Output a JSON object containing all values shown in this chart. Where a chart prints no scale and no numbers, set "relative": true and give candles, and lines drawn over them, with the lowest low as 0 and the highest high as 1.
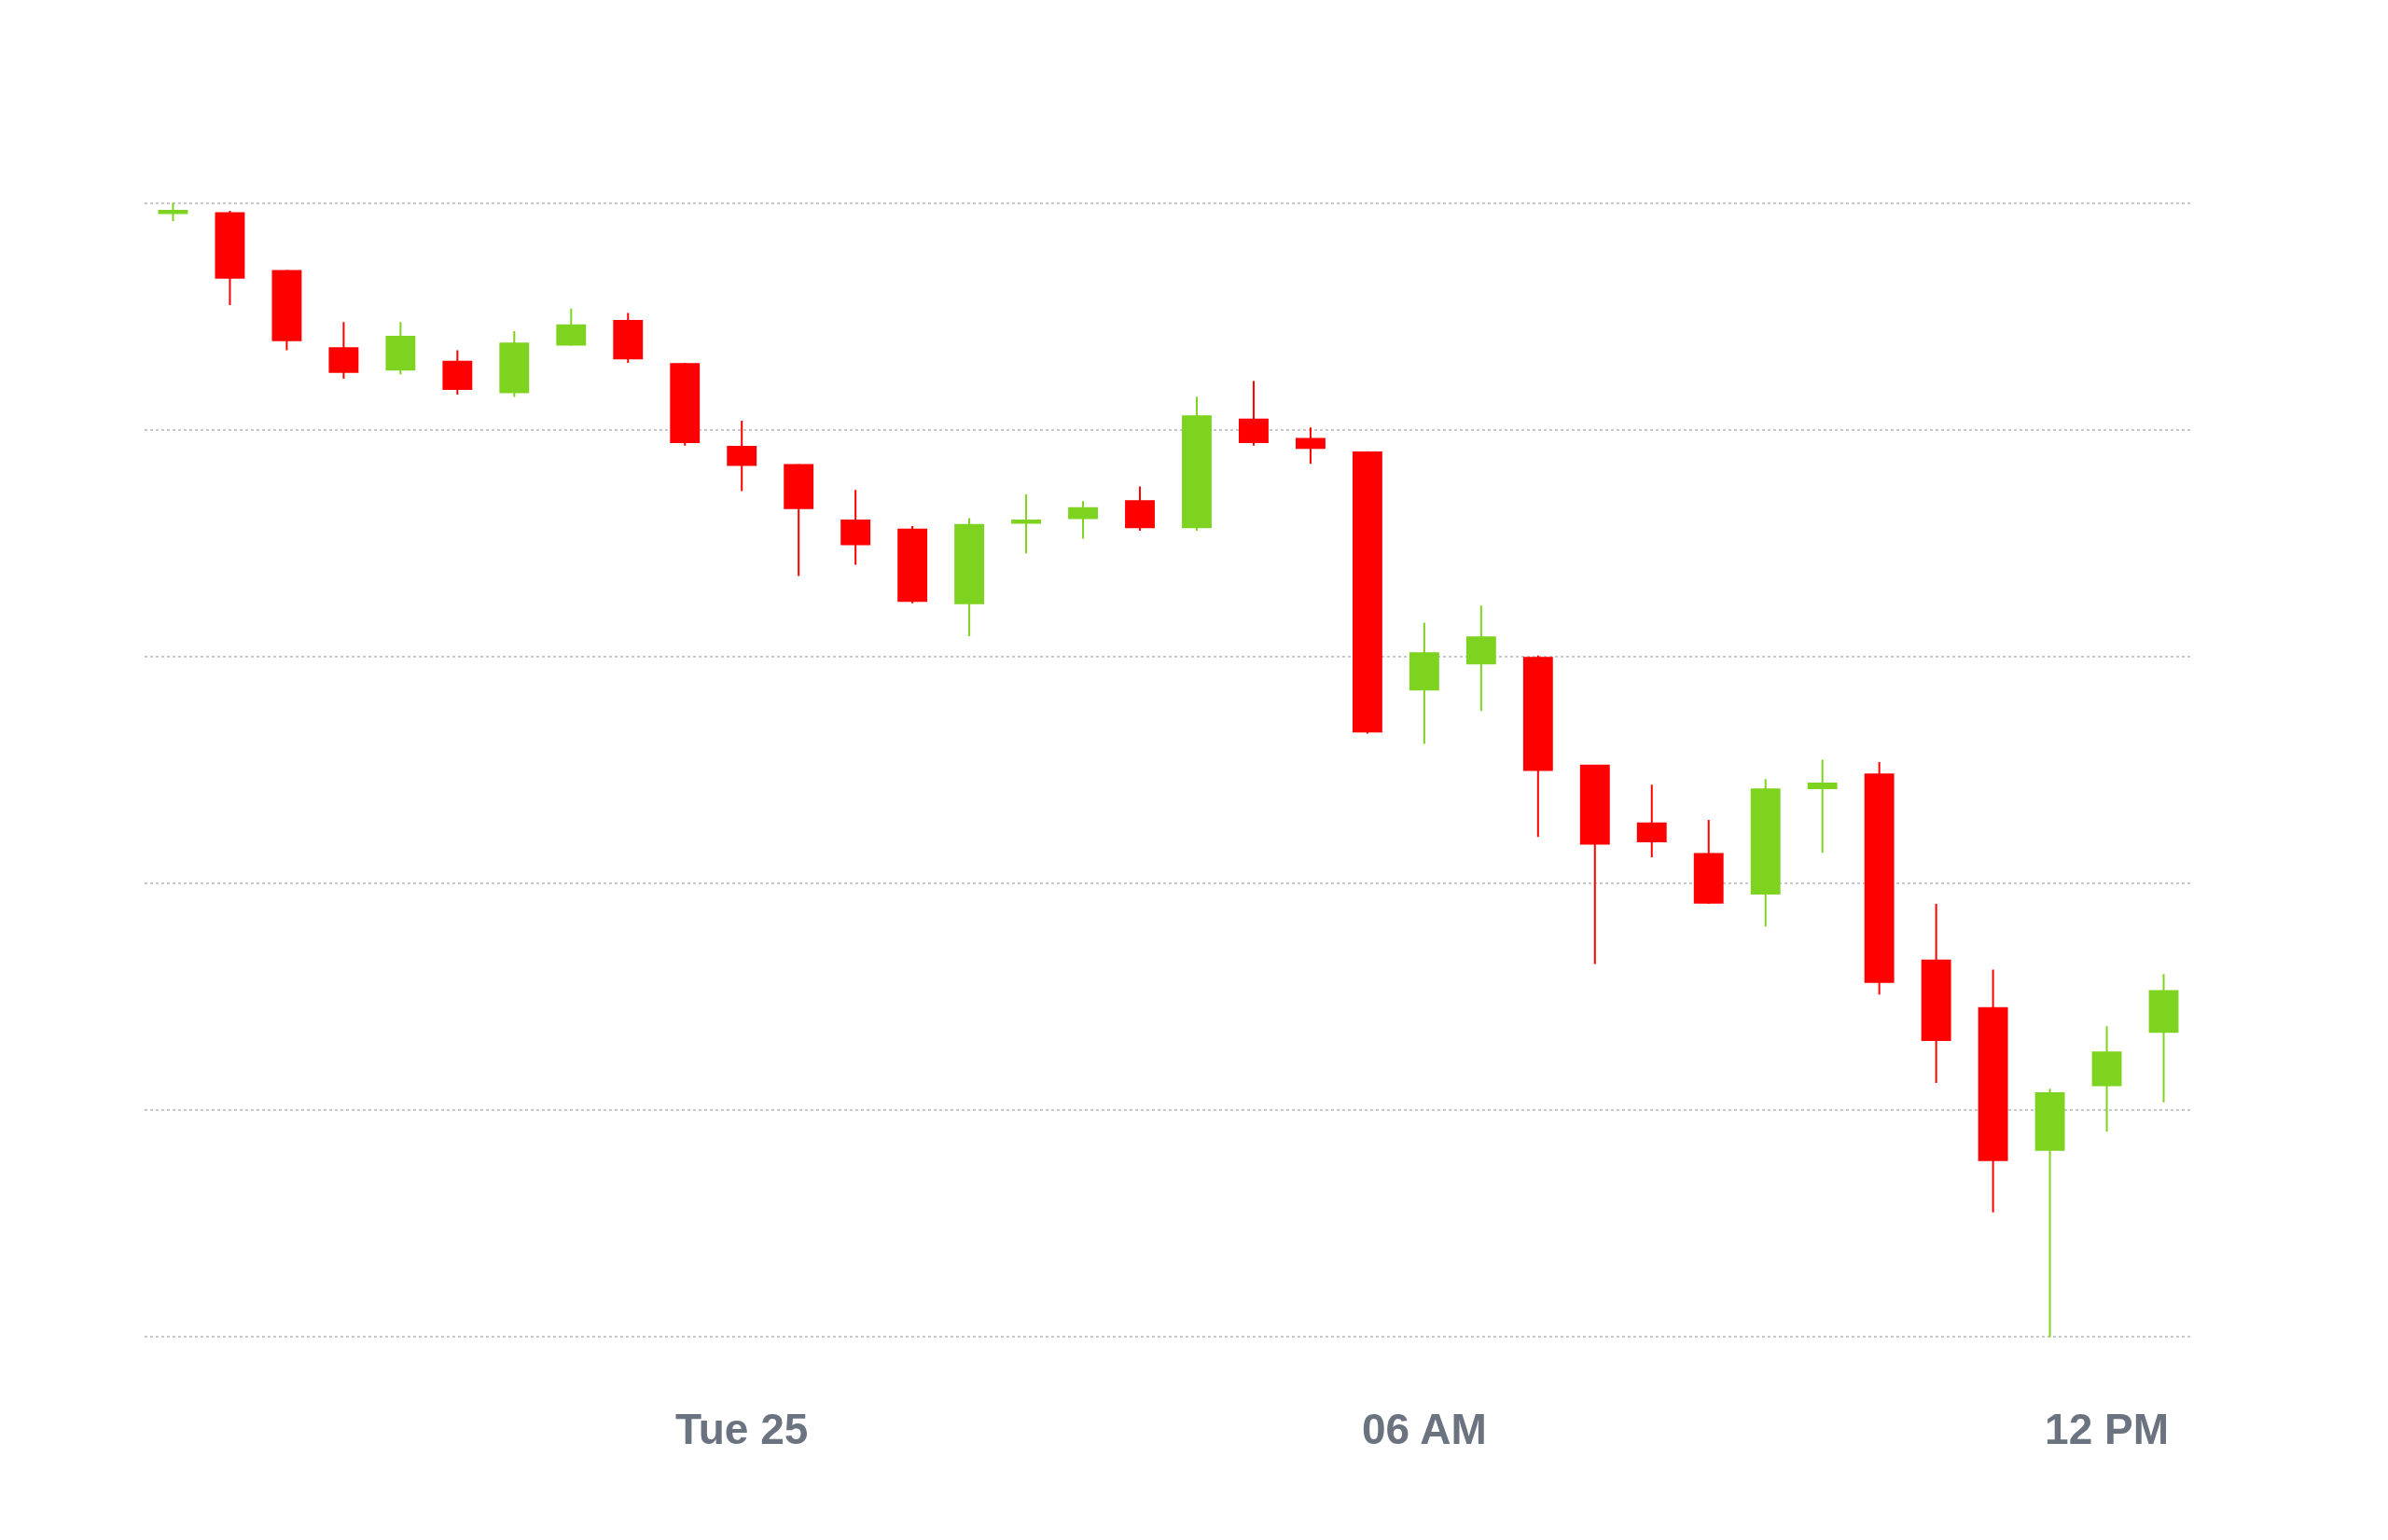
{
  "chart_data": {
    "type": "candlestick",
    "relative": true,
    "grid": "y",
    "x": [
      -5,
      -4.5,
      -4,
      -3.5,
      -3,
      -2.5,
      -2,
      -1.5,
      -1,
      -0.5,
      0,
      0.5,
      1,
      1.5,
      2,
      2.5,
      3,
      3.5,
      4,
      4.5,
      5,
      5.5,
      6,
      6.5,
      7,
      7.5,
      8,
      8.5,
      9,
      9.5,
      10,
      10.5,
      11,
      11.5,
      12,
      12.5
    ],
    "xlim": [
      -5.25,
      12.75
    ],
    "xticks": [
      {
        "value": 0,
        "label": "Tue 25"
      },
      {
        "value": 6,
        "label": "06 AM"
      },
      {
        "value": 12,
        "label": "12 PM"
      }
    ],
    "ohlc": [
      [
        0.991,
        1,
        0.984,
        0.993
      ],
      [
        0.991,
        0.993,
        0.91,
        0.934
      ],
      [
        0.94,
        0.941,
        0.87,
        0.879
      ],
      [
        0.872,
        0.895,
        0.845,
        0.851
      ],
      [
        0.853,
        0.895,
        0.849,
        0.882
      ],
      [
        0.86,
        0.87,
        0.831,
        0.836
      ],
      [
        0.833,
        0.887,
        0.829,
        0.876
      ],
      [
        0.875,
        0.907,
        0.874,
        0.892
      ],
      [
        0.896,
        0.903,
        0.859,
        0.863
      ],
      [
        0.858,
        0.859,
        0.786,
        0.789
      ],
      [
        0.785,
        0.808,
        0.746,
        0.769
      ],
      [
        0.769,
        0.77,
        0.671,
        0.731
      ],
      [
        0.72,
        0.747,
        0.681,
        0.699
      ],
      [
        0.712,
        0.715,
        0.647,
        0.649
      ],
      [
        0.647,
        0.722,
        0.618,
        0.716
      ],
      [
        0.718,
        0.743,
        0.691,
        0.72
      ],
      [
        0.722,
        0.737,
        0.704,
        0.731
      ],
      [
        0.737,
        0.75,
        0.711,
        0.714
      ],
      [
        0.714,
        0.829,
        0.711,
        0.812
      ],
      [
        0.809,
        0.843,
        0.786,
        0.789
      ],
      [
        0.792,
        0.802,
        0.77,
        0.784
      ],
      [
        0.78,
        0.781,
        0.532,
        0.534
      ],
      [
        0.571,
        0.63,
        0.523,
        0.603
      ],
      [
        0.594,
        0.645,
        0.552,
        0.617
      ],
      [
        0.599,
        0.601,
        0.441,
        0.5
      ],
      [
        0.504,
        0.504,
        0.329,
        0.435
      ],
      [
        0.453,
        0.487,
        0.423,
        0.437
      ],
      [
        0.426,
        0.456,
        0.382,
        0.383
      ],
      [
        0.391,
        0.492,
        0.362,
        0.483
      ],
      [
        0.484,
        0.509,
        0.427,
        0.488
      ],
      [
        0.496,
        0.507,
        0.302,
        0.313
      ],
      [
        0.332,
        0.382,
        0.224,
        0.262
      ],
      [
        0.29,
        0.324,
        0.11,
        0.156
      ],
      [
        0.165,
        0.219,
        0,
        0.215
      ],
      [
        0.222,
        0.274,
        0.181,
        0.251
      ],
      [
        0.269,
        0.32,
        0.207,
        0.305
      ]
    ],
    "colors": [
      "#7ed321",
      "#ff0000",
      "#ff0000",
      "#ff0000",
      "#7ed321",
      "#ff0000",
      "#7ed321",
      "#7ed321",
      "#ff0000",
      "#ff0000",
      "#ff0000",
      "#ff0000",
      "#ff0000",
      "#ff0000",
      "#7ed321",
      "#7ed321",
      "#7ed321",
      "#ff0000",
      "#7ed321",
      "#ff0000",
      "#ff0000",
      "#ff0000",
      "#7ed321",
      "#7ed321",
      "#ff0000",
      "#ff0000",
      "#ff0000",
      "#ff0000",
      "#7ed321",
      "#7ed321",
      "#ff0000",
      "#ff0000",
      "#ff0000",
      "#7ed321",
      "#7ed321",
      "#7ed321"
    ]
  }
}
